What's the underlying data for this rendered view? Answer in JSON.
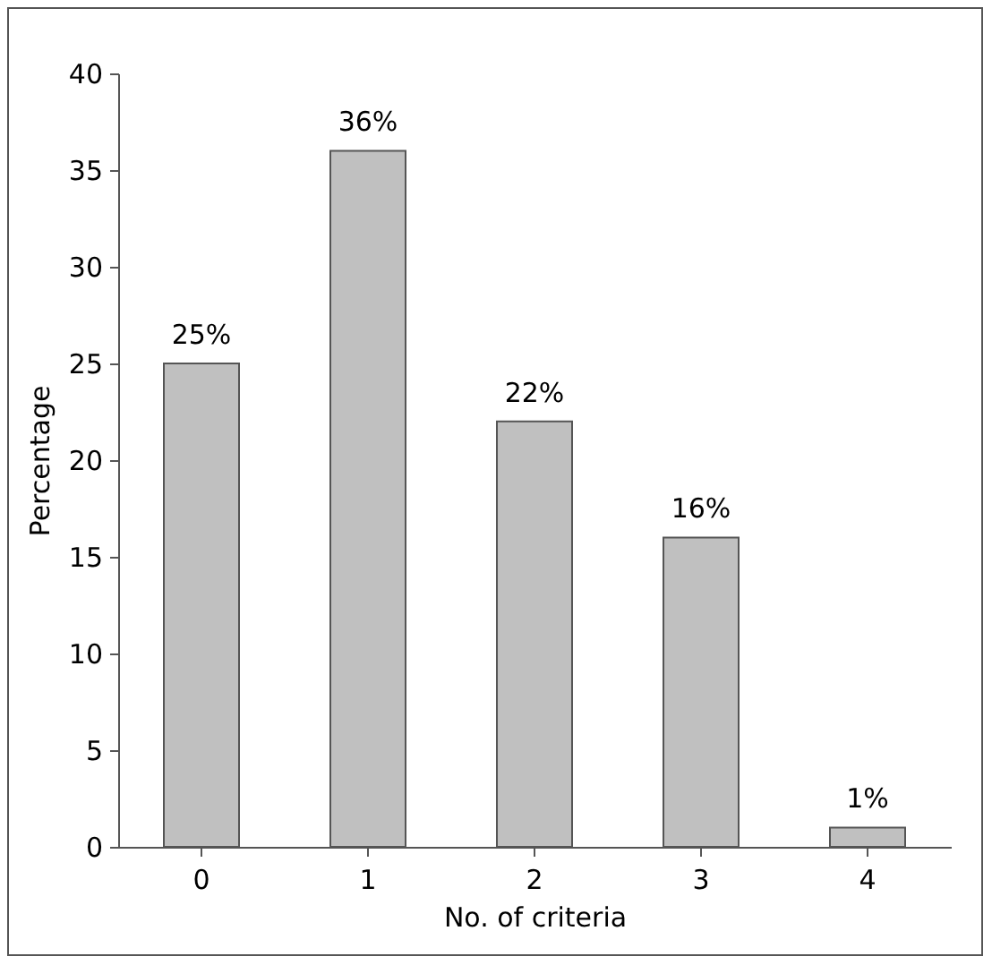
{
  "chart_data": {
    "type": "bar",
    "xlabel": "No. of criteria",
    "ylabel": "Percentage",
    "categories": [
      "0",
      "1",
      "2",
      "3",
      "4"
    ],
    "values": [
      25,
      36,
      22,
      16,
      1
    ],
    "value_labels": [
      "25%",
      "36%",
      "22%",
      "16%",
      "1%"
    ],
    "color": "#c0c0c0",
    "ylim": [
      0,
      40
    ],
    "yticks": [
      0,
      5,
      10,
      15,
      20,
      25,
      30,
      35,
      40
    ],
    "grid": false
  }
}
